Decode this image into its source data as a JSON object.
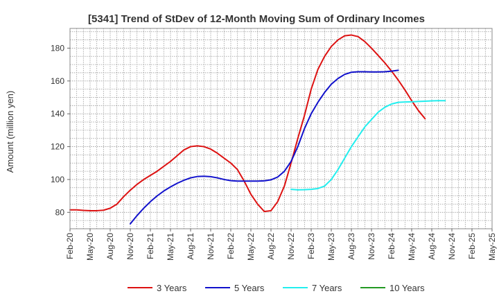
{
  "chart_data": {
    "type": "line",
    "title": "[5341]  Trend of StDev of 12-Month Moving Sum of Ordinary Incomes",
    "ylabel": "Amount (million yen)",
    "xlabel": "",
    "ylim": [
      70,
      192
    ],
    "yticks": [
      80,
      100,
      120,
      140,
      160,
      180
    ],
    "x_tick_labels": [
      "Feb-20",
      "May-20",
      "Aug-20",
      "Nov-20",
      "Feb-21",
      "May-21",
      "Aug-21",
      "Nov-21",
      "Feb-22",
      "May-22",
      "Aug-22",
      "Nov-22",
      "Feb-23",
      "May-23",
      "Aug-23",
      "Nov-23",
      "Feb-24",
      "May-24",
      "Aug-24",
      "Nov-24",
      "Feb-25",
      "May-25"
    ],
    "x_index_range": [
      0,
      63
    ],
    "grid": true,
    "legend_position": "bottom",
    "series": [
      {
        "name": "3 Years",
        "color": "#dd1111",
        "start_index": 0,
        "values": [
          81.5,
          81.5,
          81.2,
          81.0,
          81.0,
          81.3,
          82.5,
          85,
          89.5,
          93.5,
          97,
          100,
          102.5,
          105,
          108,
          111,
          114.5,
          118,
          120,
          120.5,
          120,
          118.5,
          116,
          113,
          110,
          106,
          99,
          91,
          85,
          80.5,
          81,
          86.5,
          96,
          110,
          125,
          139,
          155,
          167,
          175,
          181,
          185,
          187.5,
          188,
          187,
          184,
          180,
          175.5,
          171,
          166,
          160.5,
          154.5,
          148,
          142,
          137
        ]
      },
      {
        "name": "5 Years",
        "color": "#1111cc",
        "start_index": 9,
        "values": [
          73,
          78,
          82.5,
          86.5,
          90,
          93,
          95.5,
          97.7,
          99.5,
          101,
          101.8,
          102,
          101.7,
          101,
          100,
          99.3,
          99,
          99,
          99,
          99,
          99.2,
          99.8,
          101.5,
          105,
          111,
          120,
          131,
          140,
          147,
          153,
          158,
          161.5,
          164,
          165.3,
          165.6,
          165.6,
          165.5,
          165.5,
          165.6,
          166,
          166.5
        ]
      },
      {
        "name": "7 Years",
        "color": "#22eeee",
        "start_index": 33,
        "values": [
          94,
          93.7,
          93.8,
          94,
          94.5,
          96,
          100,
          106,
          113,
          120,
          126,
          132,
          136.5,
          141,
          144,
          146,
          147,
          147.2,
          147.3,
          147.5,
          147.7,
          147.9,
          148,
          148
        ]
      },
      {
        "name": "10 Years",
        "color": "#229922",
        "start_index": 0,
        "values": []
      }
    ]
  }
}
